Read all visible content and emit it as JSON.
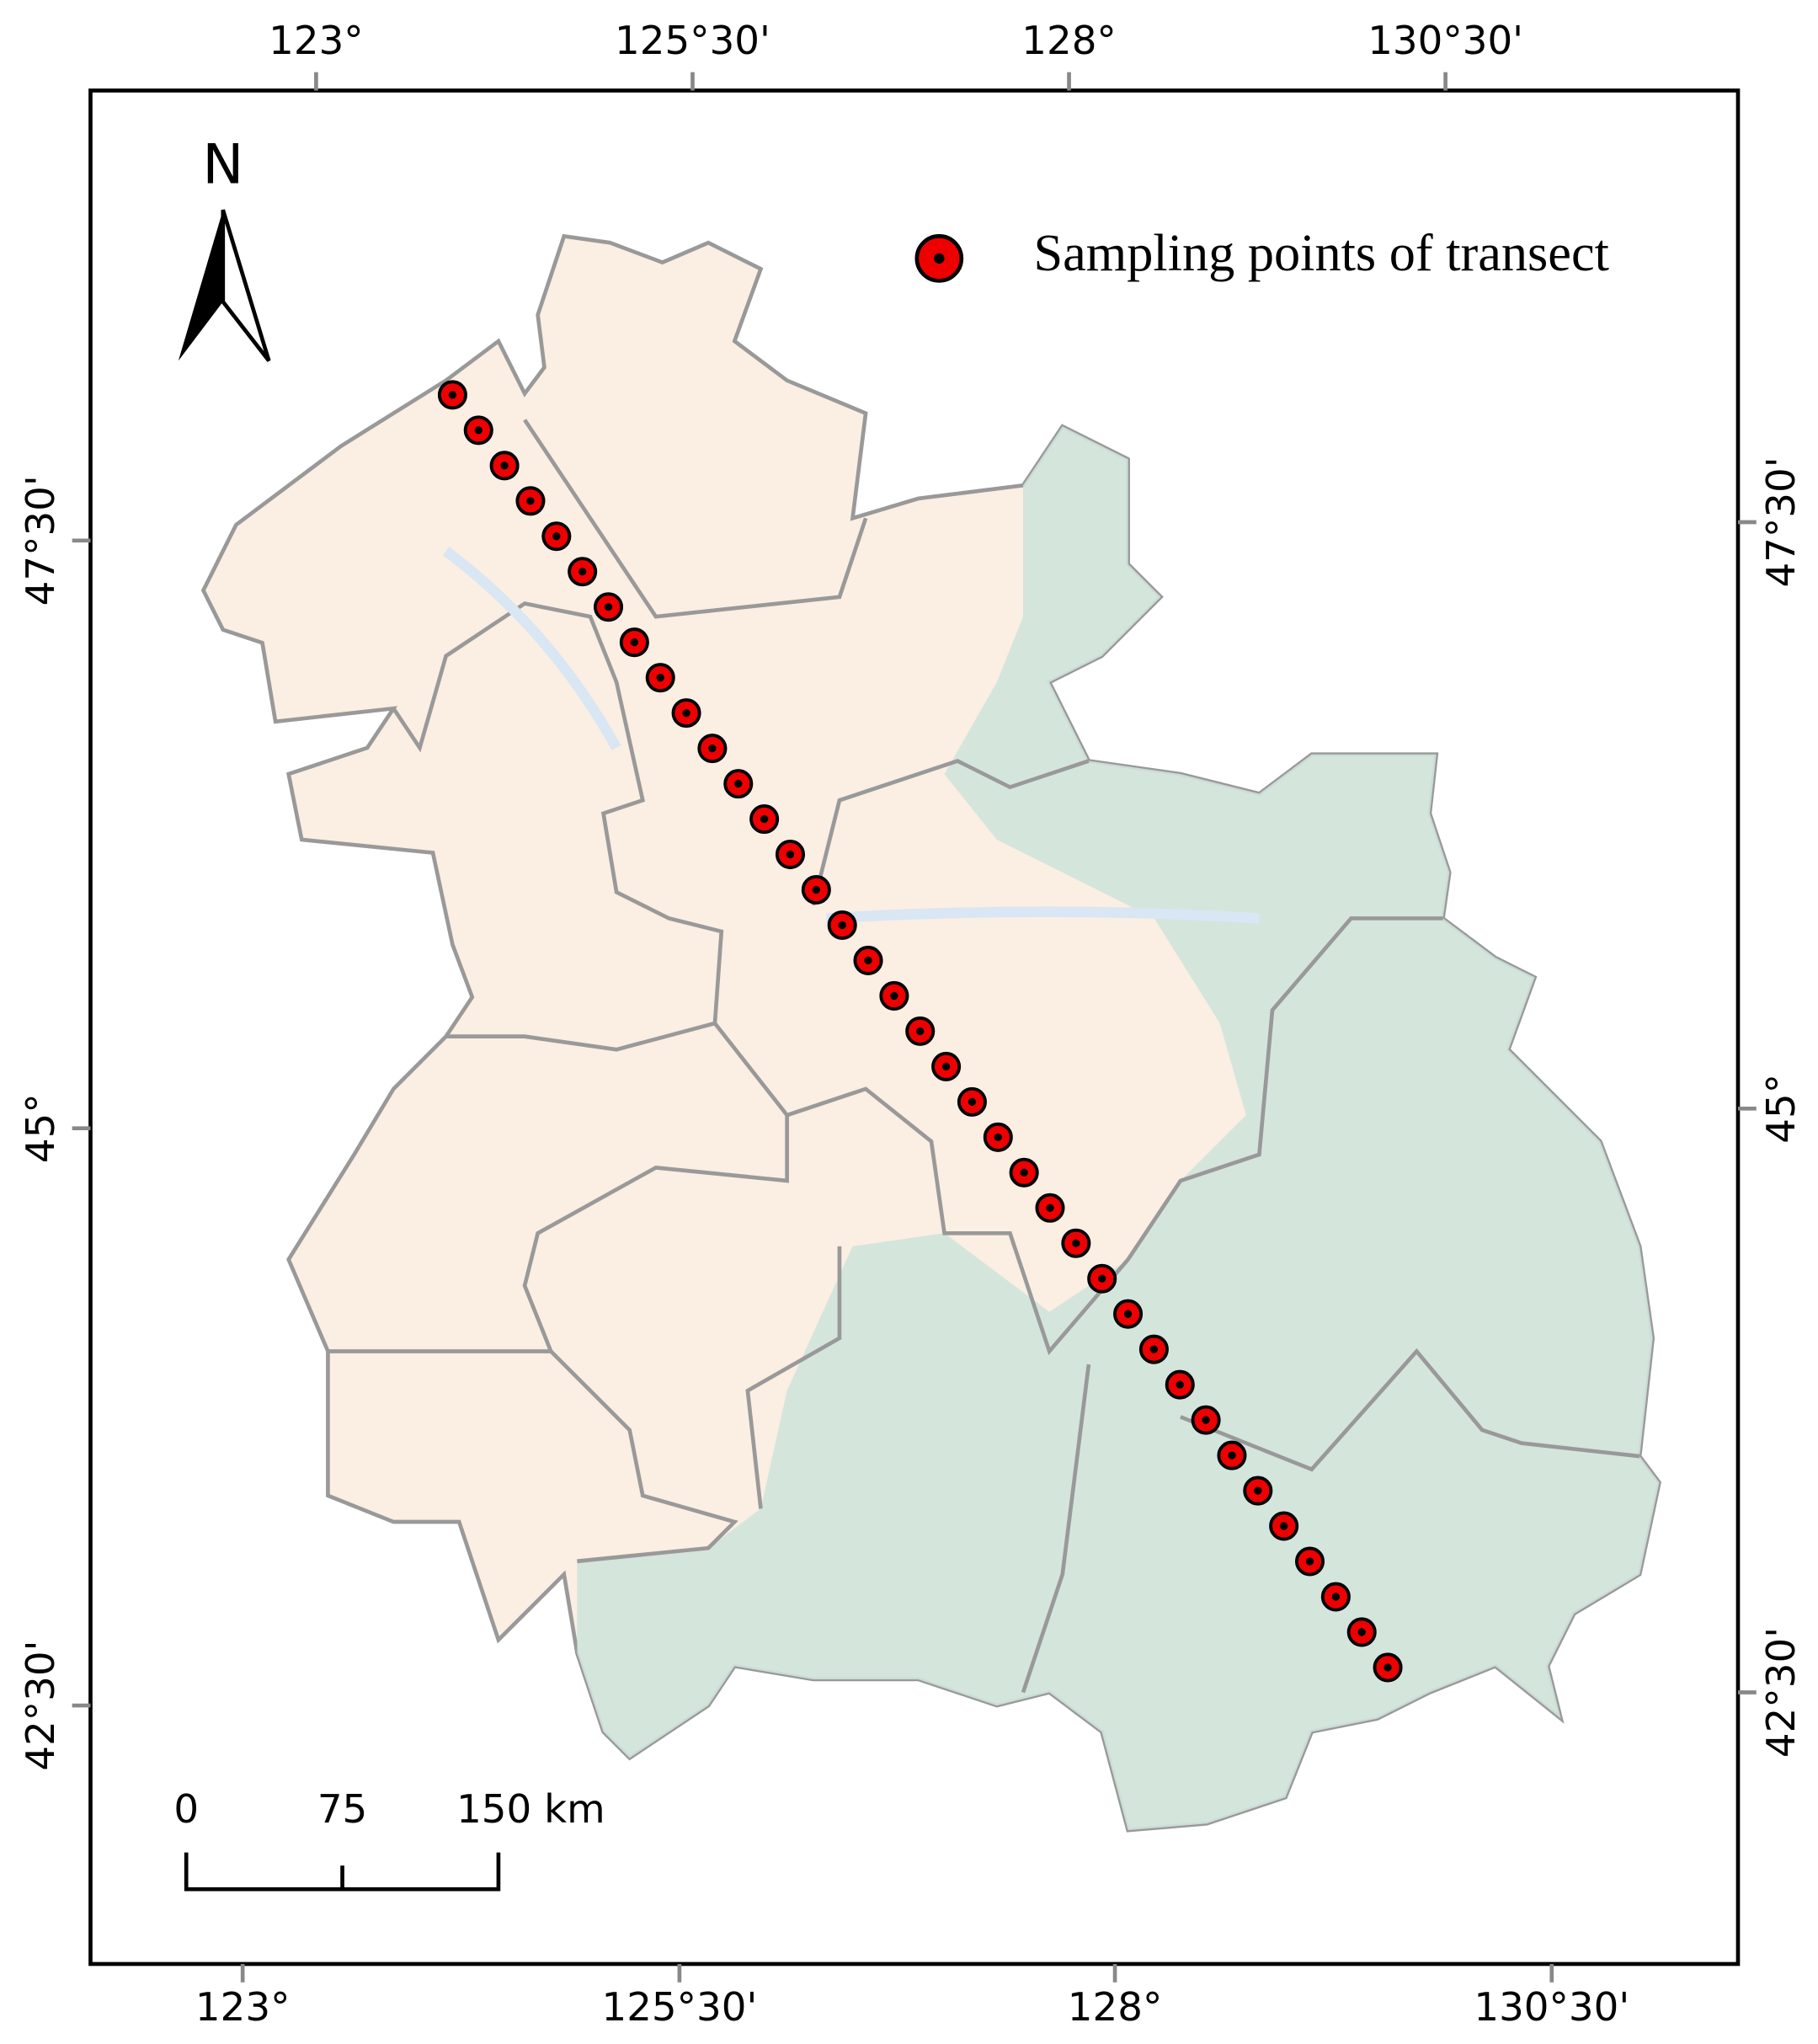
{
  "top_labels": [
    "123°",
    "125°30'",
    "128°",
    "130°30'"
  ],
  "bottom_labels": [
    "123°",
    "125°30'",
    "128°",
    "130°30'"
  ],
  "left_labels": [
    "47°30'",
    "45°",
    "42°30'"
  ],
  "right_labels": [
    "47°30'",
    "45°",
    "42°30'"
  ],
  "north": "N",
  "legend": {
    "label": "Sampling points of transect"
  },
  "scale_bar": {
    "labels": [
      "0",
      "75",
      "150 km"
    ]
  }
}
